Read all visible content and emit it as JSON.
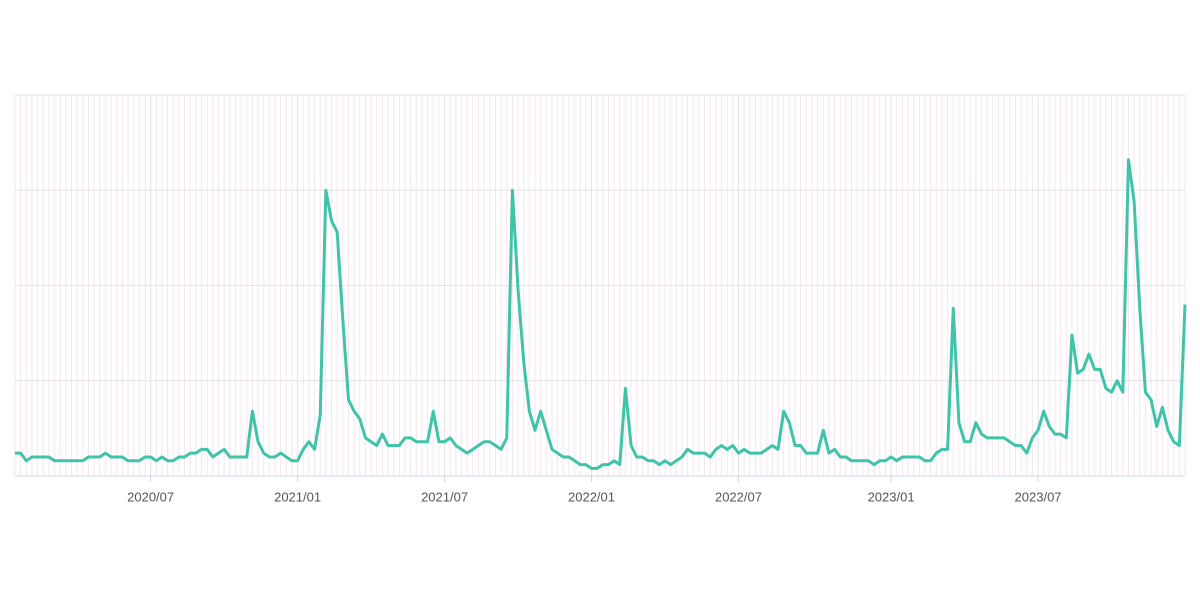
{
  "chart_data": {
    "type": "line",
    "color": "#3fc4aa",
    "grid": true,
    "categories": [
      null,
      null,
      null,
      null,
      null,
      null,
      null,
      null,
      null,
      null,
      null,
      null,
      null,
      null,
      null,
      null,
      null,
      null,
      null,
      null,
      null,
      null,
      null,
      null,
      "2020/07",
      null,
      null,
      null,
      null,
      null,
      null,
      null,
      null,
      null,
      null,
      null,
      null,
      null,
      null,
      null,
      null,
      null,
      null,
      null,
      null,
      null,
      null,
      null,
      null,
      null,
      "2021/01",
      null,
      null,
      null,
      null,
      null,
      null,
      null,
      null,
      null,
      null,
      null,
      null,
      null,
      null,
      null,
      null,
      null,
      null,
      null,
      null,
      null,
      null,
      null,
      null,
      null,
      "2021/07",
      null,
      null,
      null,
      null,
      null,
      null,
      null,
      null,
      null,
      null,
      null,
      null,
      null,
      null,
      null,
      null,
      null,
      null,
      null,
      null,
      null,
      null,
      null,
      null,
      null,
      "2022/01",
      null,
      null,
      null,
      null,
      null,
      null,
      null,
      null,
      null,
      null,
      null,
      null,
      null,
      null,
      null,
      null,
      null,
      null,
      null,
      null,
      null,
      null,
      null,
      null,
      null,
      "2022/07",
      null,
      null,
      null,
      null,
      null,
      null,
      null,
      null,
      null,
      null,
      null,
      null,
      null,
      null,
      null,
      null,
      null,
      null,
      null,
      null,
      null,
      null,
      null,
      null,
      null,
      null,
      "2023/01",
      null,
      null,
      null,
      null,
      null,
      null,
      null,
      null,
      null,
      null,
      null,
      null,
      null,
      null,
      null,
      null,
      null,
      null,
      null,
      null,
      null,
      null,
      null,
      null,
      null,
      "2023/07",
      null,
      null,
      null,
      null,
      null,
      null,
      null,
      null,
      null,
      null,
      null,
      null,
      null,
      null,
      null,
      null,
      null,
      null,
      null,
      null,
      null,
      null,
      null,
      null,
      null,
      null
    ],
    "values": [
      6,
      6,
      4,
      5,
      5,
      5,
      5,
      4,
      4,
      4,
      4,
      4,
      4,
      5,
      5,
      5,
      6,
      5,
      5,
      5,
      4,
      4,
      4,
      5,
      5,
      4,
      5,
      4,
      4,
      5,
      5,
      6,
      6,
      7,
      7,
      5,
      6,
      7,
      5,
      5,
      5,
      5,
      17,
      9,
      6,
      5,
      5,
      6,
      5,
      4,
      4,
      7,
      9,
      7,
      16,
      75,
      67,
      64,
      41,
      20,
      17,
      15,
      10,
      9,
      8,
      11,
      8,
      8,
      8,
      10,
      10,
      9,
      9,
      9,
      17,
      9,
      9,
      10,
      8,
      7,
      6,
      7,
      8,
      9,
      9,
      8,
      7,
      10,
      75,
      49,
      30,
      17,
      12,
      17,
      12,
      7,
      6,
      5,
      5,
      4,
      3,
      3,
      2,
      2,
      3,
      3,
      4,
      3,
      23,
      8,
      5,
      5,
      4,
      4,
      3,
      4,
      3,
      4,
      5,
      7,
      6,
      6,
      6,
      5,
      7,
      8,
      7,
      8,
      6,
      7,
      6,
      6,
      6,
      7,
      8,
      7,
      17,
      14,
      8,
      8,
      6,
      6,
      6,
      12,
      6,
      7,
      5,
      5,
      4,
      4,
      4,
      4,
      3,
      4,
      4,
      5,
      4,
      5,
      5,
      5,
      5,
      4,
      4,
      6,
      7,
      7,
      44,
      14,
      9,
      9,
      14,
      11,
      10,
      10,
      10,
      10,
      9,
      8,
      8,
      6,
      10,
      12,
      17,
      13,
      11,
      11,
      10,
      37,
      27,
      28,
      32,
      28,
      28,
      23,
      22,
      25,
      22,
      83,
      72,
      44,
      22,
      20,
      13,
      18,
      12,
      9,
      8,
      45
    ],
    "ylim": [
      0,
      100
    ],
    "yticks": [
      0,
      25,
      50,
      75,
      100
    ]
  }
}
